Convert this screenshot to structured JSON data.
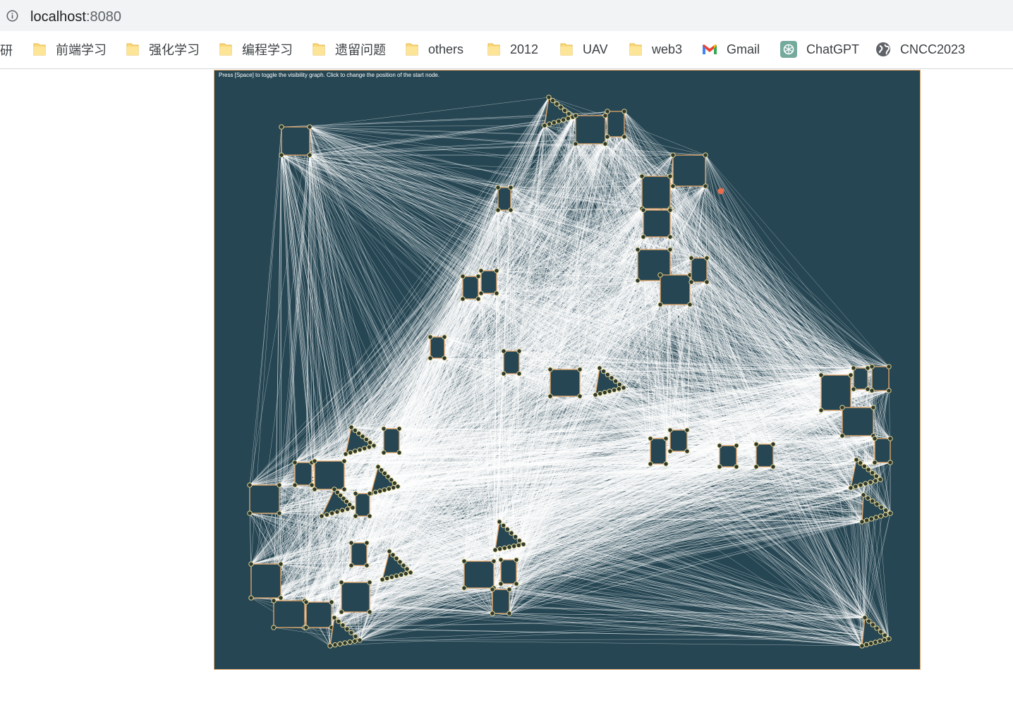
{
  "browser": {
    "url_host": "localhost",
    "url_port": ":8080",
    "bookmarks": [
      {
        "label": "前端学习",
        "icon": "folder-icon"
      },
      {
        "label": "强化学习",
        "icon": "folder-icon"
      },
      {
        "label": "编程学习",
        "icon": "folder-icon"
      },
      {
        "label": "遗留问题",
        "icon": "folder-icon"
      },
      {
        "label": "others",
        "icon": "folder-icon"
      },
      {
        "label": "2012",
        "icon": "folder-icon"
      },
      {
        "label": "UAV",
        "icon": "folder-icon"
      },
      {
        "label": "web3",
        "icon": "folder-icon"
      },
      {
        "label": "Gmail",
        "icon": "gmail-icon"
      },
      {
        "label": "ChatGPT",
        "icon": "chatgpt-icon"
      },
      {
        "label": "CNCC2023",
        "icon": "globe-icon"
      }
    ],
    "bookmark_cutoff": "研"
  },
  "canvas": {
    "instruction": "Press [Space] to toggle the visibility graph. Click to change the position of the start node.",
    "visibility_graph_visible": true,
    "colors": {
      "background": "#264653",
      "edges": "#ffffff",
      "obstacle_stroke": "#e8a96a",
      "vertex_fill": "#2d3a2e",
      "vertex_stroke": "#f4e3a1",
      "start_node": "#e76f51"
    }
  }
}
